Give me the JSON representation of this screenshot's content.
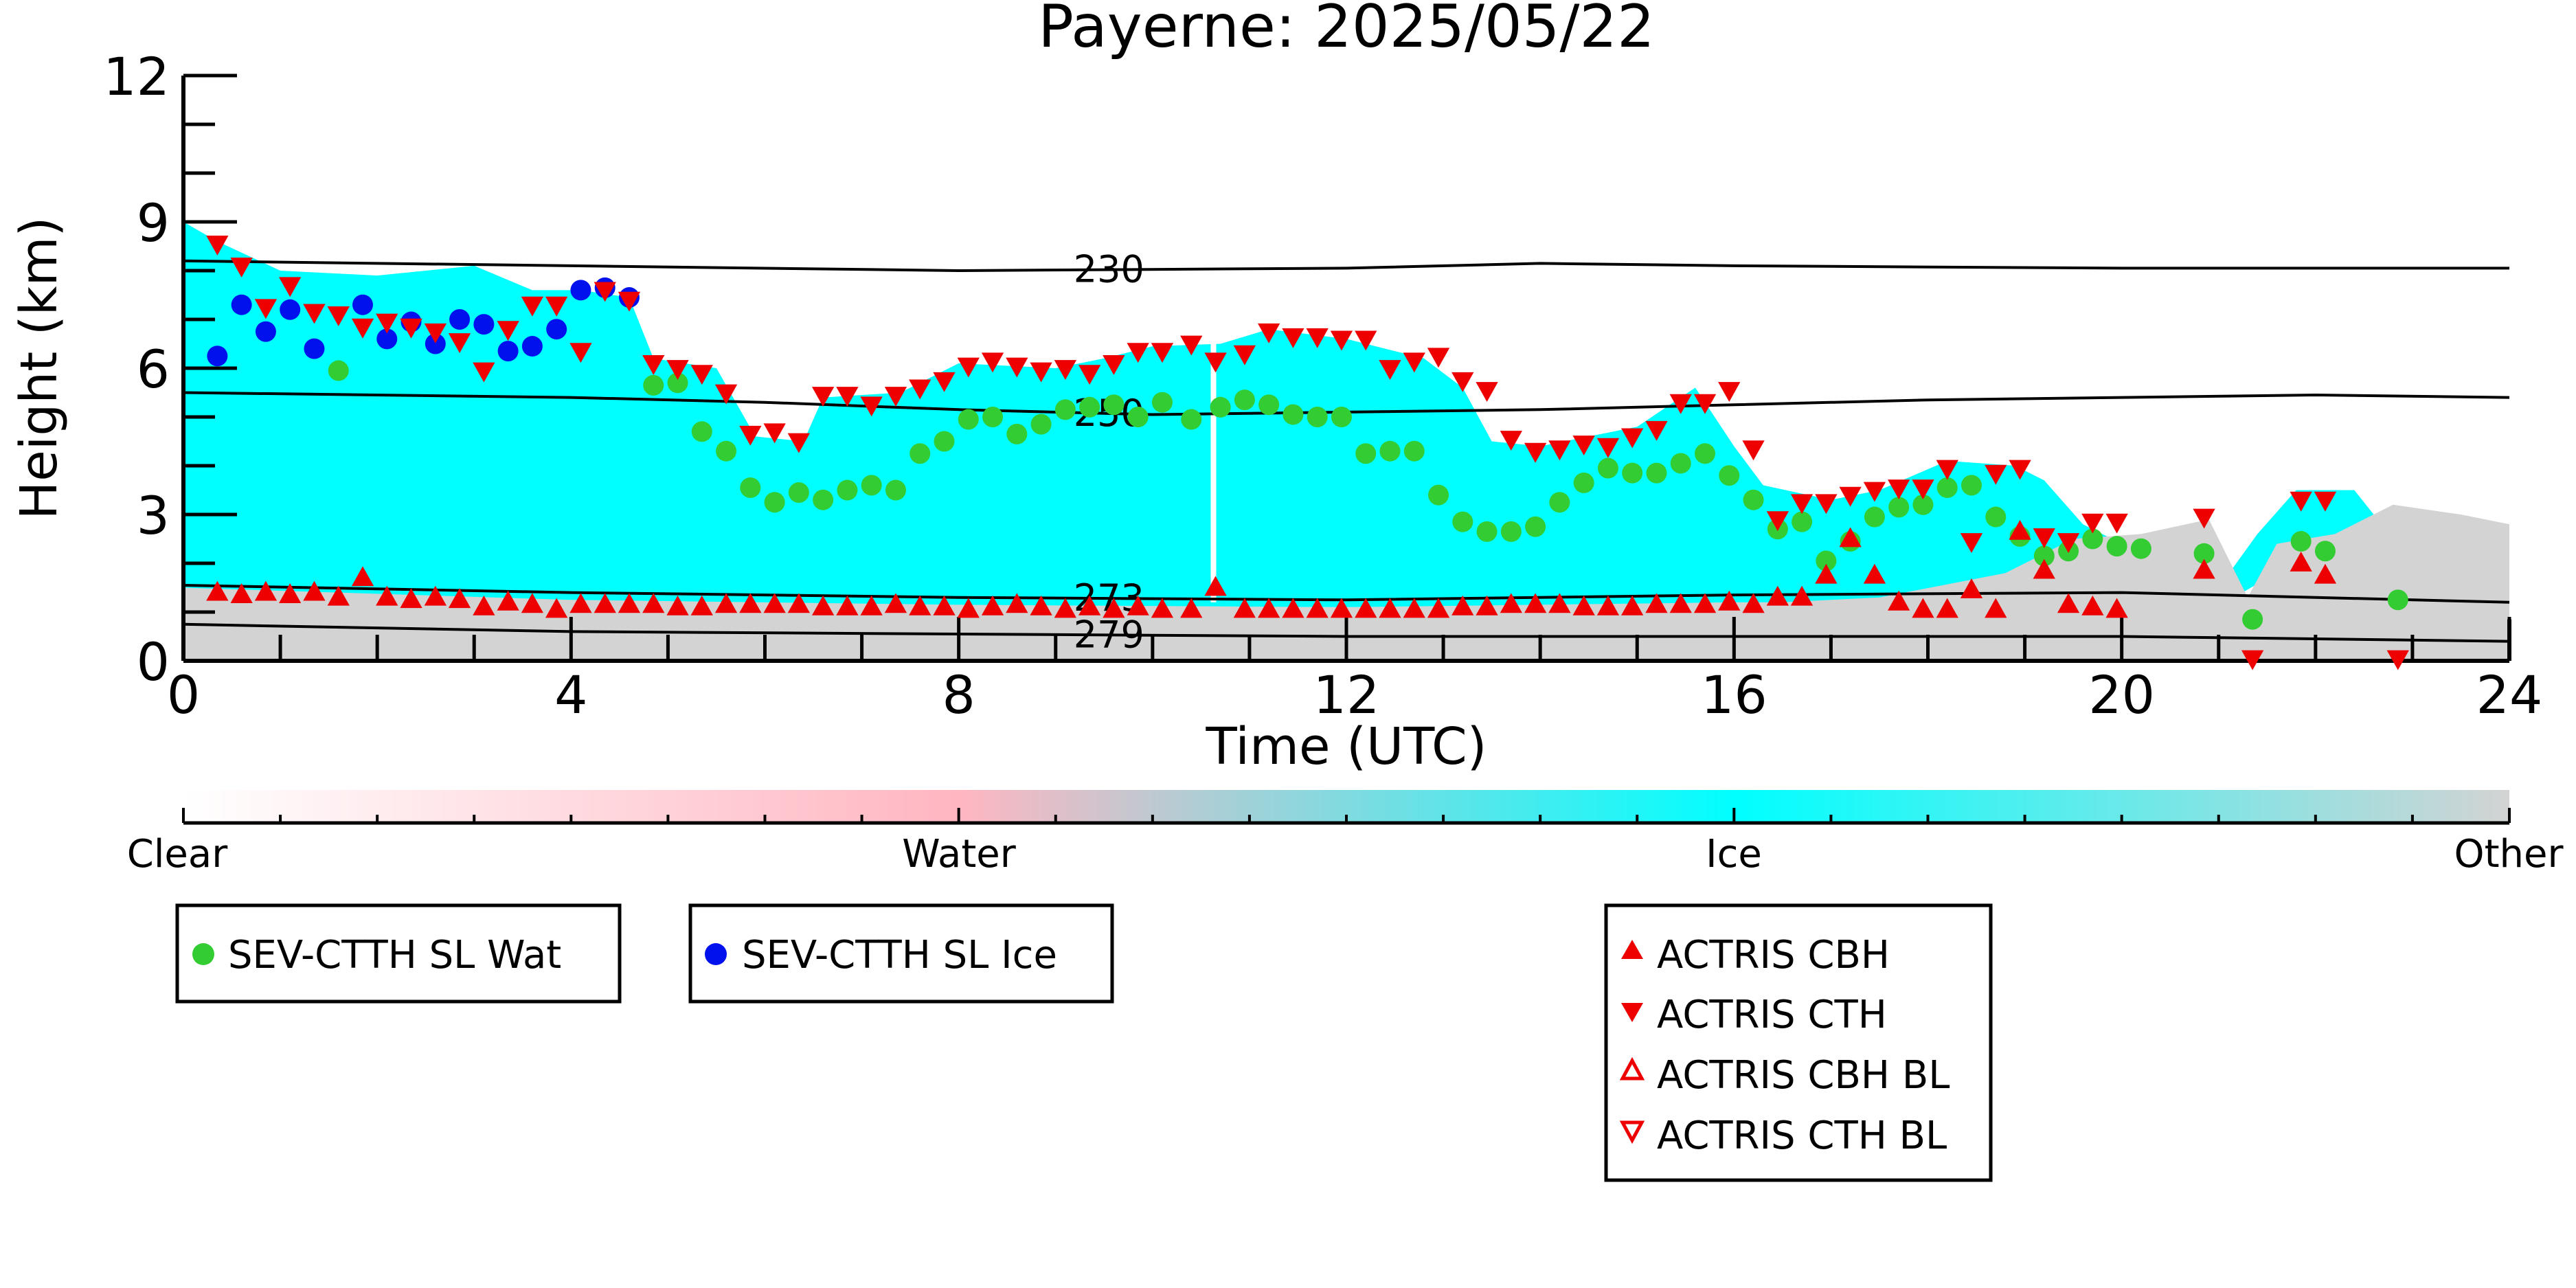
{
  "chart_data": {
    "type": "scatter",
    "title": "Payerne: 2025/05/22",
    "xlabel": "Time (UTC)",
    "ylabel": "Height (km)",
    "xlim": [
      0,
      24
    ],
    "ylim": [
      0,
      12
    ],
    "x_ticks": [
      "0",
      "4",
      "8",
      "12",
      "16",
      "20",
      "24"
    ],
    "y_ticks": [
      "0",
      "3",
      "6",
      "9",
      "12"
    ],
    "colorbar": {
      "labels": [
        "Clear",
        "Water",
        "Ice",
        "Other"
      ],
      "colors": [
        "#ffffff",
        "#ffb6c1",
        "#00ffff",
        "#d3d3d3"
      ]
    },
    "isotherms": [
      {
        "label": "230",
        "x": [
          0,
          4,
          8,
          12,
          14,
          16,
          20,
          24
        ],
        "y": [
          8.2,
          8.1,
          8.0,
          8.05,
          8.15,
          8.1,
          8.05,
          8.05
        ]
      },
      {
        "label": "250",
        "x": [
          0,
          4,
          6,
          8,
          10,
          12,
          14,
          16,
          18,
          20,
          22,
          24
        ],
        "y": [
          5.5,
          5.4,
          5.3,
          5.15,
          5.05,
          5.1,
          5.15,
          5.25,
          5.35,
          5.4,
          5.45,
          5.4
        ]
      },
      {
        "label": "273",
        "x": [
          0,
          4,
          8,
          12,
          16,
          20,
          24
        ],
        "y": [
          1.55,
          1.4,
          1.3,
          1.25,
          1.35,
          1.4,
          1.2
        ]
      },
      {
        "label": "279",
        "x": [
          0,
          4,
          8,
          12,
          16,
          20,
          22,
          24
        ],
        "y": [
          0.75,
          0.6,
          0.55,
          0.5,
          0.5,
          0.5,
          0.45,
          0.4
        ]
      }
    ],
    "series": [
      {
        "name": "SEV-CTTH SL Wat",
        "color": "#33cc33",
        "marker": "circle",
        "x": [
          1.6,
          4.85,
          5.1,
          5.35,
          5.6,
          5.85,
          6.1,
          6.35,
          6.6,
          6.85,
          7.1,
          7.35,
          7.6,
          7.85,
          8.1,
          8.35,
          8.6,
          8.85,
          9.1,
          9.35,
          9.6,
          9.85,
          10.1,
          10.4,
          10.7,
          10.95,
          11.2,
          11.45,
          11.7,
          11.95,
          12.2,
          12.45,
          12.7,
          12.95,
          13.2,
          13.45,
          13.7,
          13.95,
          14.2,
          14.45,
          14.7,
          14.95,
          15.2,
          15.45,
          15.7,
          15.95,
          16.2,
          16.45,
          16.7,
          16.95,
          17.2,
          17.45,
          17.7,
          17.95,
          18.2,
          18.45,
          18.7,
          18.95,
          19.2,
          19.45,
          19.7,
          19.95,
          20.2,
          20.85,
          21.35,
          21.85,
          22.1,
          22.85
        ],
        "y": [
          5.95,
          5.65,
          5.7,
          4.7,
          4.3,
          3.55,
          3.25,
          3.45,
          3.3,
          3.5,
          3.6,
          3.5,
          4.25,
          4.5,
          4.95,
          5.0,
          4.65,
          4.85,
          5.15,
          5.2,
          5.25,
          5.0,
          5.3,
          4.95,
          5.2,
          5.35,
          5.25,
          5.05,
          5.0,
          5.0,
          4.25,
          4.3,
          4.3,
          3.4,
          2.85,
          2.65,
          2.65,
          2.75,
          3.25,
          3.65,
          3.95,
          3.85,
          3.85,
          4.05,
          4.25,
          3.8,
          3.3,
          2.7,
          2.85,
          2.05,
          2.45,
          2.95,
          3.15,
          3.2,
          3.55,
          3.6,
          2.95,
          2.55,
          2.15,
          2.25,
          2.5,
          2.35,
          2.3,
          2.2,
          0.85,
          2.45,
          2.25,
          1.25
        ]
      },
      {
        "name": "SEV-CTTH SL Ice",
        "color": "#0011ee",
        "marker": "circle",
        "x": [
          0.35,
          0.6,
          0.85,
          1.1,
          1.35,
          1.85,
          2.1,
          2.35,
          2.6,
          2.85,
          3.1,
          3.35,
          3.6,
          3.85,
          4.1,
          4.35,
          4.6
        ],
        "y": [
          6.25,
          7.3,
          6.75,
          7.2,
          6.4,
          7.3,
          6.6,
          6.95,
          6.5,
          7.0,
          6.9,
          6.35,
          6.45,
          6.8,
          7.6,
          7.65,
          7.45
        ]
      },
      {
        "name": "ACTRIS CBH",
        "color": "#ee0000",
        "marker": "triangle-up",
        "x": [
          0.35,
          0.6,
          0.85,
          1.1,
          1.35,
          1.6,
          1.85,
          2.1,
          2.35,
          2.6,
          2.85,
          3.1,
          3.35,
          3.6,
          3.85,
          4.1,
          4.35,
          4.6,
          4.85,
          5.1,
          5.35,
          5.6,
          5.85,
          6.1,
          6.35,
          6.6,
          6.85,
          7.1,
          7.35,
          7.6,
          7.85,
          8.1,
          8.35,
          8.6,
          8.85,
          9.1,
          9.35,
          9.6,
          9.85,
          10.1,
          10.4,
          10.65,
          10.95,
          11.2,
          11.45,
          11.7,
          11.95,
          12.2,
          12.45,
          12.7,
          12.95,
          13.2,
          13.45,
          13.7,
          13.95,
          14.2,
          14.45,
          14.7,
          14.95,
          15.2,
          15.45,
          15.7,
          15.95,
          16.2,
          16.45,
          16.7,
          16.95,
          17.2,
          17.45,
          17.7,
          17.95,
          18.2,
          18.45,
          18.7,
          18.95,
          19.2,
          19.45,
          19.7,
          19.95,
          20.85,
          21.85,
          22.1
        ],
        "y": [
          1.4,
          1.35,
          1.4,
          1.35,
          1.4,
          1.3,
          1.7,
          1.3,
          1.25,
          1.3,
          1.25,
          1.1,
          1.2,
          1.15,
          1.05,
          1.15,
          1.15,
          1.15,
          1.15,
          1.1,
          1.1,
          1.15,
          1.15,
          1.15,
          1.15,
          1.1,
          1.1,
          1.1,
          1.15,
          1.1,
          1.1,
          1.05,
          1.1,
          1.15,
          1.1,
          1.05,
          1.1,
          1.05,
          1.1,
          1.05,
          1.05,
          1.5,
          1.05,
          1.05,
          1.05,
          1.05,
          1.05,
          1.05,
          1.05,
          1.05,
          1.05,
          1.1,
          1.1,
          1.15,
          1.15,
          1.15,
          1.1,
          1.1,
          1.1,
          1.15,
          1.15,
          1.15,
          1.2,
          1.15,
          1.3,
          1.3,
          1.75,
          2.5,
          1.75,
          1.2,
          1.05,
          1.05,
          1.45,
          1.05,
          2.65,
          1.85,
          1.15,
          1.1,
          1.05,
          1.85,
          2.0,
          1.75
        ]
      },
      {
        "name": "ACTRIS CTH",
        "color": "#ee0000",
        "marker": "triangle-down",
        "x": [
          0.35,
          0.6,
          0.85,
          1.1,
          1.35,
          1.6,
          1.85,
          2.1,
          2.35,
          2.6,
          2.85,
          3.1,
          3.35,
          3.6,
          3.85,
          4.1,
          4.35,
          4.6,
          4.85,
          5.1,
          5.35,
          5.6,
          5.85,
          6.1,
          6.35,
          6.6,
          6.85,
          7.1,
          7.35,
          7.6,
          7.85,
          8.1,
          8.35,
          8.6,
          8.85,
          9.1,
          9.35,
          9.6,
          9.85,
          10.1,
          10.4,
          10.65,
          10.95,
          11.2,
          11.45,
          11.7,
          11.95,
          12.2,
          12.45,
          12.7,
          12.95,
          13.2,
          13.45,
          13.7,
          13.95,
          14.2,
          14.45,
          14.7,
          14.95,
          15.2,
          15.45,
          15.7,
          15.95,
          16.2,
          16.45,
          16.7,
          16.95,
          17.2,
          17.45,
          17.7,
          17.95,
          18.2,
          18.45,
          18.7,
          18.95,
          19.2,
          19.45,
          19.7,
          19.95,
          20.85,
          21.35,
          21.85,
          22.1,
          22.85
        ],
        "y": [
          8.55,
          8.1,
          7.25,
          7.7,
          7.15,
          7.1,
          6.85,
          6.95,
          6.85,
          6.75,
          6.55,
          5.95,
          6.8,
          7.3,
          7.3,
          6.35,
          7.6,
          7.4,
          6.1,
          6.0,
          5.9,
          5.5,
          4.65,
          4.7,
          4.5,
          5.45,
          5.45,
          5.25,
          5.45,
          5.6,
          5.75,
          6.05,
          6.15,
          6.05,
          5.95,
          6.0,
          5.9,
          6.1,
          6.35,
          6.35,
          6.5,
          6.15,
          6.3,
          6.75,
          6.65,
          6.65,
          6.6,
          6.6,
          6.0,
          6.15,
          6.25,
          5.75,
          5.55,
          4.55,
          4.3,
          4.35,
          4.45,
          4.4,
          4.6,
          4.75,
          5.3,
          5.3,
          5.55,
          4.35,
          2.9,
          3.25,
          3.25,
          3.4,
          3.5,
          3.55,
          3.55,
          3.95,
          2.45,
          3.85,
          3.95,
          2.55,
          2.45,
          2.85,
          2.85,
          2.95,
          0.05,
          3.3,
          3.3,
          0.05
        ]
      },
      {
        "name": "ACTRIS CBH BL",
        "color": "#ee0000",
        "marker": "triangle-up-open",
        "x": [],
        "y": []
      },
      {
        "name": "ACTRIS CTH BL",
        "color": "#ee0000",
        "marker": "triangle-down-open",
        "x": [],
        "y": []
      }
    ],
    "legend_placement": "bottom"
  }
}
